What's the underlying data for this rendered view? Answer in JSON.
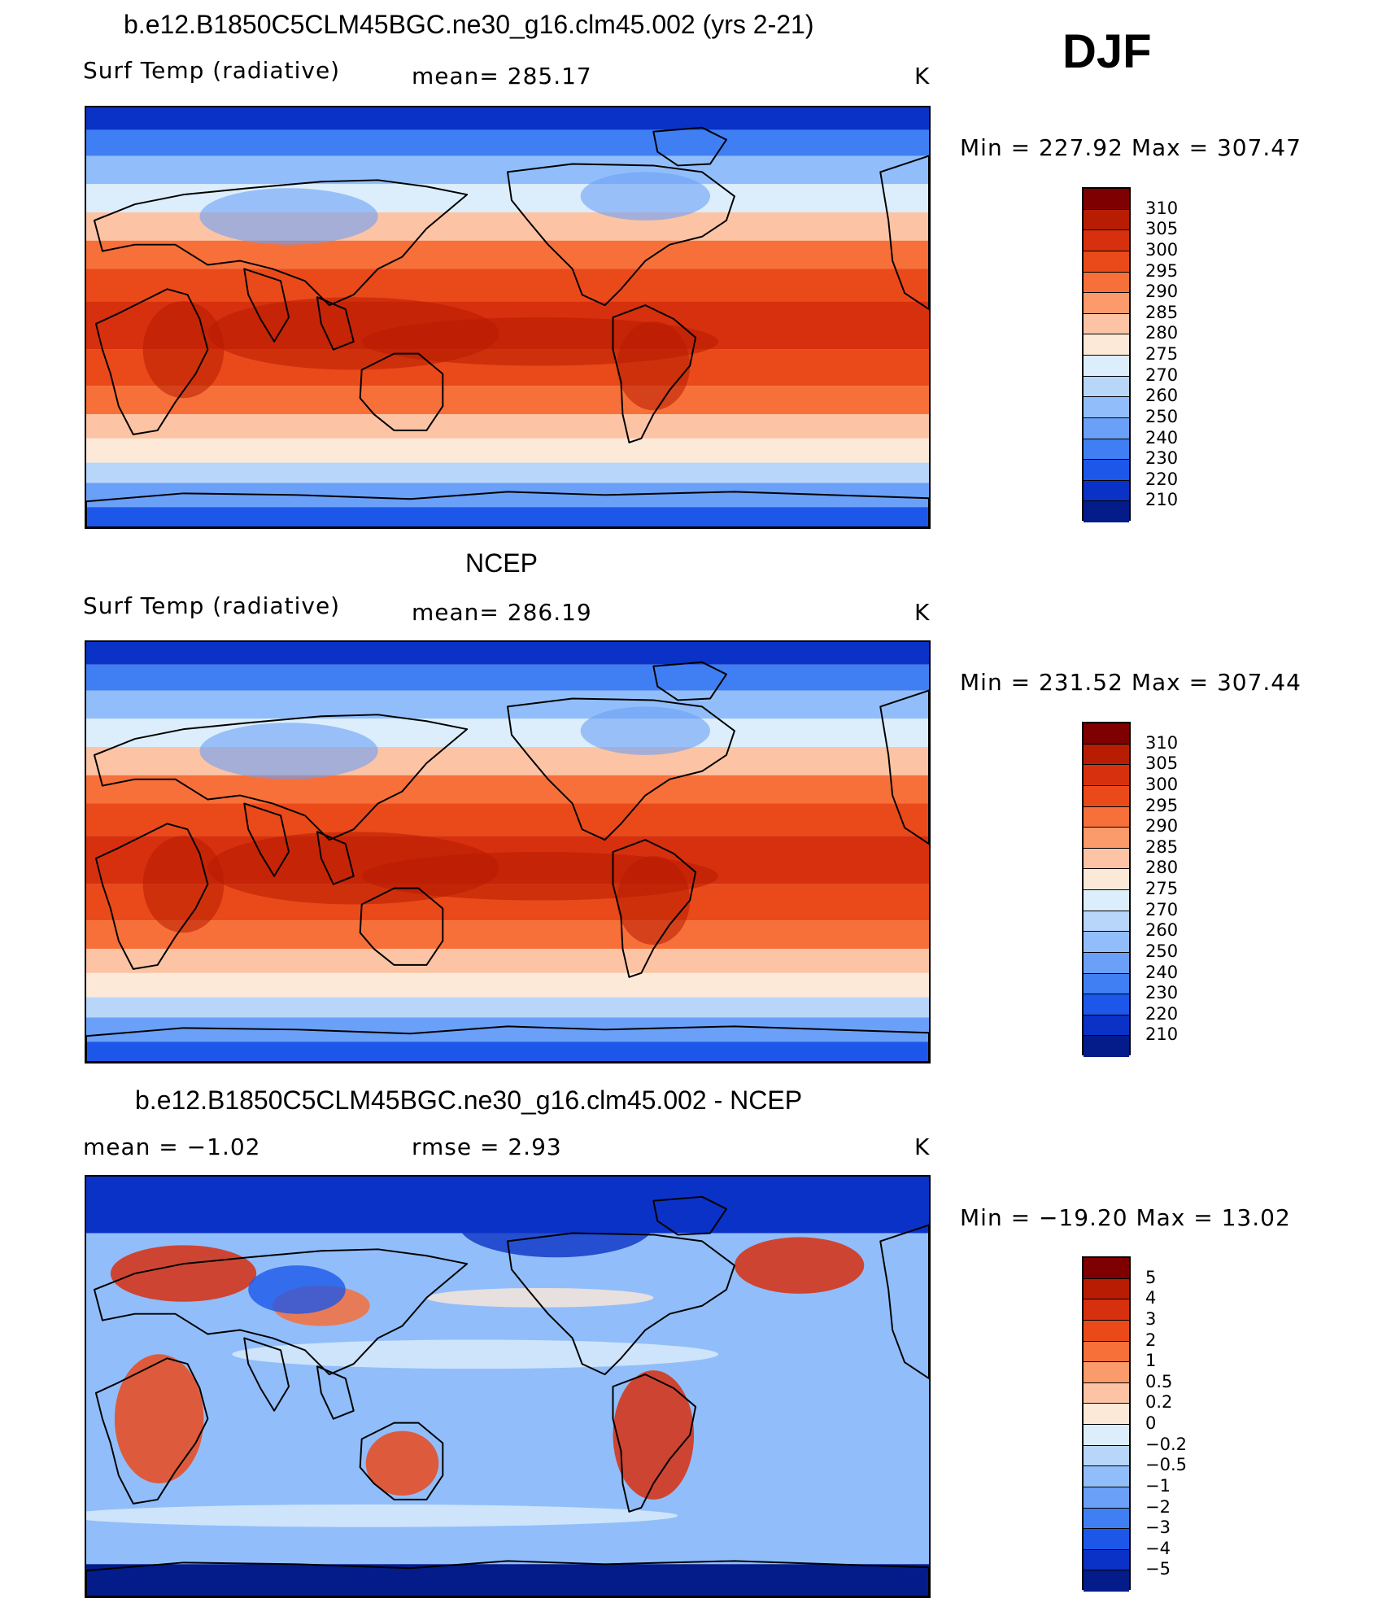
{
  "season": "DJF",
  "panels": [
    {
      "title": "b.e12.B1850C5CLM45BGC.ne30_g16.clm45.002 (yrs 2-21)",
      "left_label": "Surf Temp (radiative)",
      "center_label": "mean=  285.17",
      "units": "K",
      "minmax": "Min  =  227.92  Max  =  307.47",
      "field": "model",
      "colorbar": {
        "labels": [
          "310",
          "305",
          "300",
          "295",
          "290",
          "285",
          "280",
          "275",
          "270",
          "260",
          "250",
          "240",
          "230",
          "220",
          "210"
        ],
        "colors": [
          "#7f0000",
          "#b81c02",
          "#d7300e",
          "#ea4a1a",
          "#f7703a",
          "#fb9a6a",
          "#fcc4a5",
          "#fde9d8",
          "#dceefb",
          "#b8d6fa",
          "#91befa",
          "#6aa0f7",
          "#3f7ff3",
          "#1c57ea",
          "#0b32c6",
          "#041b8a"
        ]
      },
      "map_colors": {
        "cold": "#0b32c6",
        "warm": "#d7300e"
      }
    },
    {
      "title": "NCEP",
      "left_label": "Surf Temp (radiative)",
      "center_label": "mean=  286.19",
      "units": "K",
      "minmax": "Min  =  231.52  Max  =  307.44",
      "field": "obs",
      "colorbar": {
        "labels": [
          "310",
          "305",
          "300",
          "295",
          "290",
          "285",
          "280",
          "275",
          "270",
          "260",
          "250",
          "240",
          "230",
          "220",
          "210"
        ],
        "colors": [
          "#7f0000",
          "#b81c02",
          "#d7300e",
          "#ea4a1a",
          "#f7703a",
          "#fb9a6a",
          "#fcc4a5",
          "#fde9d8",
          "#dceefb",
          "#b8d6fa",
          "#91befa",
          "#6aa0f7",
          "#3f7ff3",
          "#1c57ea",
          "#0b32c6",
          "#041b8a"
        ]
      },
      "map_colors": {
        "cold": "#0b32c6",
        "warm": "#d7300e"
      }
    },
    {
      "title": "b.e12.B1850C5CLM45BGC.ne30_g16.clm45.002 - NCEP",
      "left_label": "mean =    −1.02",
      "center_label": "rmse =     2.93",
      "units": "K",
      "minmax": "Min  =  −19.20  Max  =    13.02",
      "field": "diff",
      "colorbar": {
        "labels": [
          "5",
          "4",
          "3",
          "2",
          "1",
          "0.5",
          "0.2",
          "0",
          "−0.2",
          "−0.5",
          "−1",
          "−2",
          "−3",
          "−4",
          "−5"
        ],
        "colors": [
          "#7f0000",
          "#b81c02",
          "#d7300e",
          "#ea4a1a",
          "#f7703a",
          "#fb9a6a",
          "#fcc4a5",
          "#fde9d8",
          "#dceefb",
          "#b8d6fa",
          "#91befa",
          "#6aa0f7",
          "#3f7ff3",
          "#1c57ea",
          "#0b32c6",
          "#041b8a"
        ]
      },
      "map_colors": {
        "cold": "#0b32c6",
        "warm": "#d7300e"
      }
    }
  ]
}
